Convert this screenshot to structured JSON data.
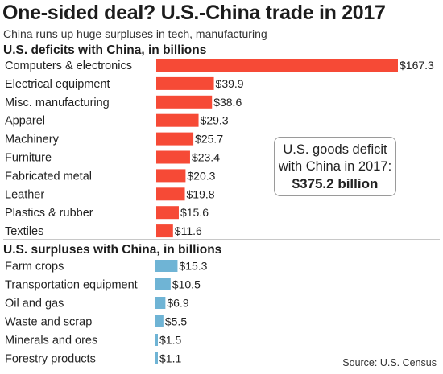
{
  "title": "One-sided deal? U.S.-China trade in 2017",
  "subtitle": "China runs up huge surpluses in tech, manufacturing",
  "source": "Source: U.S. Census",
  "callout": {
    "line1": "U.S. goods deficit",
    "line2": "with China in 2017:",
    "amount": "$375.2 billion"
  },
  "colors": {
    "deficit": "#f64a36",
    "surplus": "#6fb4d5"
  },
  "chart_data": [
    {
      "type": "bar",
      "orientation": "horizontal",
      "title": "U.S. deficits with China, in billions",
      "categories": [
        "Computers & electronics",
        "Electrical equipment",
        "Misc. manufacturing",
        "Apparel",
        "Machinery",
        "Furniture",
        "Fabricated metal",
        "Leather",
        "Plastics & rubber",
        "Textiles"
      ],
      "values": [
        167.3,
        39.9,
        38.6,
        29.3,
        25.7,
        23.4,
        20.3,
        19.8,
        15.6,
        11.6
      ],
      "labels": [
        "$167.3",
        "$39.9",
        "$38.6",
        "$29.3",
        "$25.7",
        "$23.4",
        "$20.3",
        "$19.8",
        "$15.6",
        "$11.6"
      ],
      "color": "#f64a36",
      "xlim": [
        0,
        167.3
      ]
    },
    {
      "type": "bar",
      "orientation": "horizontal",
      "title": "U.S. surpluses with China, in billions",
      "categories": [
        "Farm crops",
        "Transportation equipment",
        "Oil and gas",
        "Waste and scrap",
        "Minerals and ores",
        "Forestry products"
      ],
      "values": [
        15.3,
        10.5,
        6.9,
        5.5,
        1.5,
        1.1
      ],
      "labels": [
        "$15.3",
        "$10.5",
        "$6.9",
        "$5.5",
        "$1.5",
        "$1.1"
      ],
      "color": "#6fb4d5",
      "xlim": [
        0,
        167.3
      ]
    }
  ]
}
